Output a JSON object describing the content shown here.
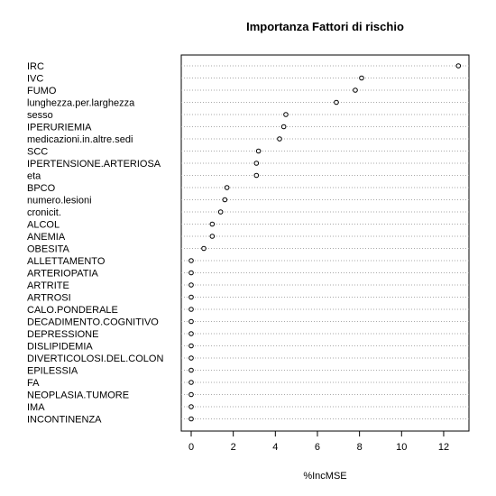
{
  "chart_data": {
    "type": "scatter",
    "title": "Importanza Fattori di rischio",
    "xlabel": "%IncMSE",
    "ylabel": "",
    "xlim": [
      -0.5,
      13.2
    ],
    "xticks": [
      0,
      2,
      4,
      6,
      8,
      10,
      12
    ],
    "grid": "dotted horizontal lines per variable",
    "categories": [
      "IRC",
      "IVC",
      "FUMO",
      "lunghezza.per.larghezza",
      "sesso",
      "IPERURIEMIA",
      "medicazioni.in.altre.sedi",
      "SCC",
      "IPERTENSIONE.ARTERIOSA",
      "eta",
      "BPCO",
      "numero.lesioni",
      "cronicit.",
      "ALCOL",
      "ANEMIA",
      "OBESITA",
      "ALLETTAMENTO",
      "ARTERIOPATIA",
      "ARTRITE",
      "ARTROSI",
      "CALO.PONDERALE",
      "DECADIMENTO.COGNITIVO",
      "DEPRESSIONE",
      "DISLIPIDEMIA",
      "DIVERTICOLOSI.DEL.COLON",
      "EPILESSIA",
      "FA",
      "NEOPLASIA.TUMORE",
      "IMA",
      "INCONTINENZA"
    ],
    "values": [
      12.7,
      8.1,
      7.8,
      6.9,
      4.5,
      4.4,
      4.2,
      3.2,
      3.1,
      3.1,
      1.7,
      1.6,
      1.4,
      1.0,
      1.0,
      0.6,
      0,
      0,
      0,
      0,
      0,
      0,
      0,
      0,
      0,
      0,
      0,
      0,
      0,
      0
    ]
  }
}
